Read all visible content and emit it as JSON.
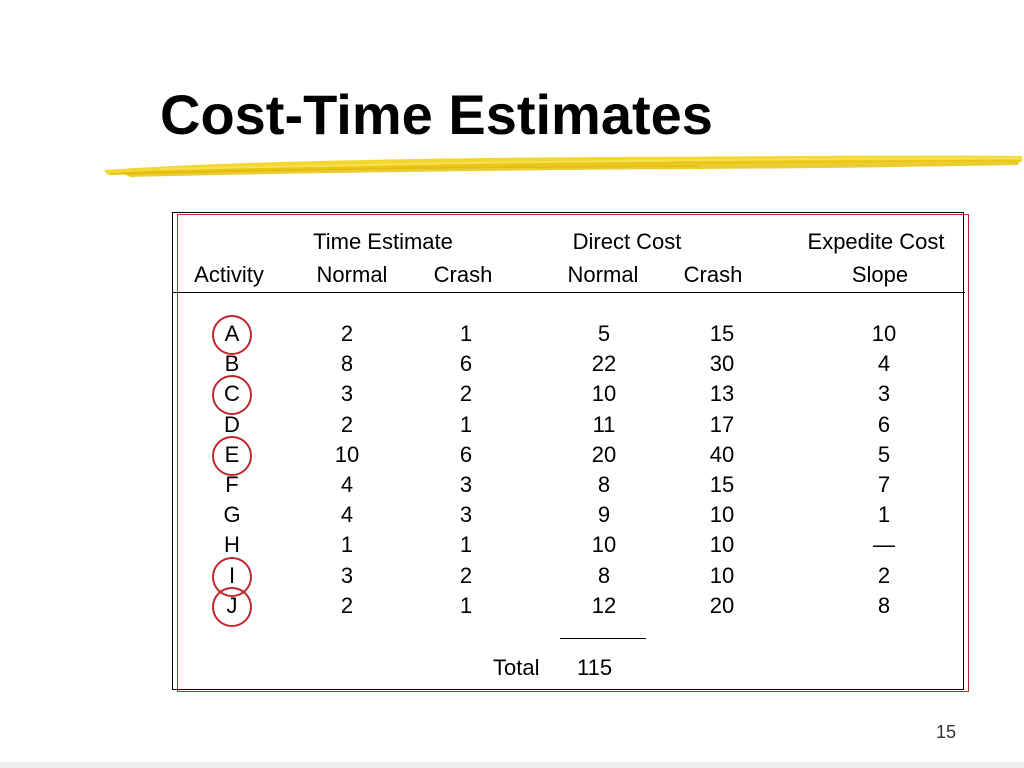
{
  "slide": {
    "title": "Cost-Time Estimates",
    "page_number": "15"
  },
  "table": {
    "group_headers": {
      "time_estimate": "Time Estimate",
      "direct_cost": "Direct Cost",
      "expedite_cost": "Expedite Cost"
    },
    "column_headers": {
      "activity": "Activity",
      "time_normal": "Normal",
      "time_crash": "Crash",
      "cost_normal": "Normal",
      "cost_crash": "Crash",
      "slope": "Slope"
    },
    "rows": [
      {
        "activity": "A",
        "time_normal": "2",
        "time_crash": "1",
        "cost_normal": "5",
        "cost_crash": "15",
        "slope": "10",
        "circled": true
      },
      {
        "activity": "B",
        "time_normal": "8",
        "time_crash": "6",
        "cost_normal": "22",
        "cost_crash": "30",
        "slope": "4",
        "circled": false
      },
      {
        "activity": "C",
        "time_normal": "3",
        "time_crash": "2",
        "cost_normal": "10",
        "cost_crash": "13",
        "slope": "3",
        "circled": true
      },
      {
        "activity": "D",
        "time_normal": "2",
        "time_crash": "1",
        "cost_normal": "11",
        "cost_crash": "17",
        "slope": "6",
        "circled": false
      },
      {
        "activity": "E",
        "time_normal": "10",
        "time_crash": "6",
        "cost_normal": "20",
        "cost_crash": "40",
        "slope": "5",
        "circled": true
      },
      {
        "activity": "F",
        "time_normal": "4",
        "time_crash": "3",
        "cost_normal": "8",
        "cost_crash": "15",
        "slope": "7",
        "circled": false
      },
      {
        "activity": "G",
        "time_normal": "4",
        "time_crash": "3",
        "cost_normal": "9",
        "cost_crash": "10",
        "slope": "1",
        "circled": false
      },
      {
        "activity": "H",
        "time_normal": "1",
        "time_crash": "1",
        "cost_normal": "10",
        "cost_crash": "10",
        "slope": "—",
        "circled": false
      },
      {
        "activity": "I",
        "time_normal": "3",
        "time_crash": "2",
        "cost_normal": "8",
        "cost_crash": "10",
        "slope": "2",
        "circled": true
      },
      {
        "activity": "J",
        "time_normal": "2",
        "time_crash": "1",
        "cost_normal": "12",
        "cost_crash": "20",
        "slope": "8",
        "circled": true
      }
    ],
    "total_label": "Total",
    "total_value": "115"
  },
  "colors": {
    "highlight_circle": "#c0282e",
    "brush_stroke": "#f2d31b"
  }
}
